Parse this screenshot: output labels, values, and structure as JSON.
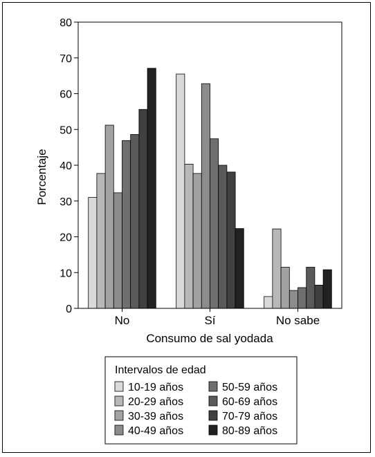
{
  "chart_data": {
    "type": "bar",
    "title": "",
    "xlabel": "Consumo de sal yodada",
    "ylabel": "Porcentaje",
    "categories": [
      "No",
      "Sí",
      "No sabe"
    ],
    "ylim": [
      0,
      80
    ],
    "yticks": [
      0,
      10,
      20,
      30,
      40,
      50,
      60,
      70,
      80
    ],
    "grid": false,
    "legend": {
      "title": "Intervalos de edad",
      "placement": "bottom-center",
      "columns": 2
    },
    "series": [
      {
        "name": "10-19 años",
        "color": "#d9d9d9",
        "values": [
          31,
          65.5,
          3.3
        ]
      },
      {
        "name": "20-29 años",
        "color": "#b8b8b8",
        "values": [
          37.7,
          40.3,
          22.2
        ]
      },
      {
        "name": "30-39 años",
        "color": "#a2a2a2",
        "values": [
          51.2,
          37.7,
          11.5
        ]
      },
      {
        "name": "40-49 años",
        "color": "#8c8c8c",
        "values": [
          32.3,
          62.8,
          5
        ]
      },
      {
        "name": "50-59 años",
        "color": "#6f6f6f",
        "values": [
          46.9,
          47.4,
          5.8
        ]
      },
      {
        "name": "60-69 años",
        "color": "#5a5a5a",
        "values": [
          48.6,
          40,
          11.5
        ]
      },
      {
        "name": "70-79 años",
        "color": "#404040",
        "values": [
          55.6,
          38.1,
          6.5
        ]
      },
      {
        "name": "80-89 años",
        "color": "#222222",
        "values": [
          67.1,
          22.3,
          10.8
        ]
      }
    ]
  }
}
